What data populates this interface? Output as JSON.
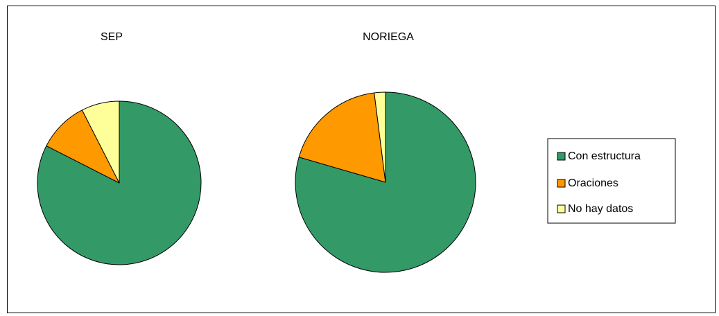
{
  "chart_data": {
    "type": "pie",
    "legend_position": "right",
    "categories": [
      "Con estructura",
      "Oraciones",
      "No hay datos"
    ],
    "colors": [
      "#339966",
      "#ff9900",
      "#ffff99"
    ],
    "charts": [
      {
        "title": "SEP",
        "values": [
          82.5,
          10,
          7.5
        ]
      },
      {
        "title": "NORIEGA",
        "values": [
          79.5,
          18.5,
          2
        ]
      }
    ]
  }
}
